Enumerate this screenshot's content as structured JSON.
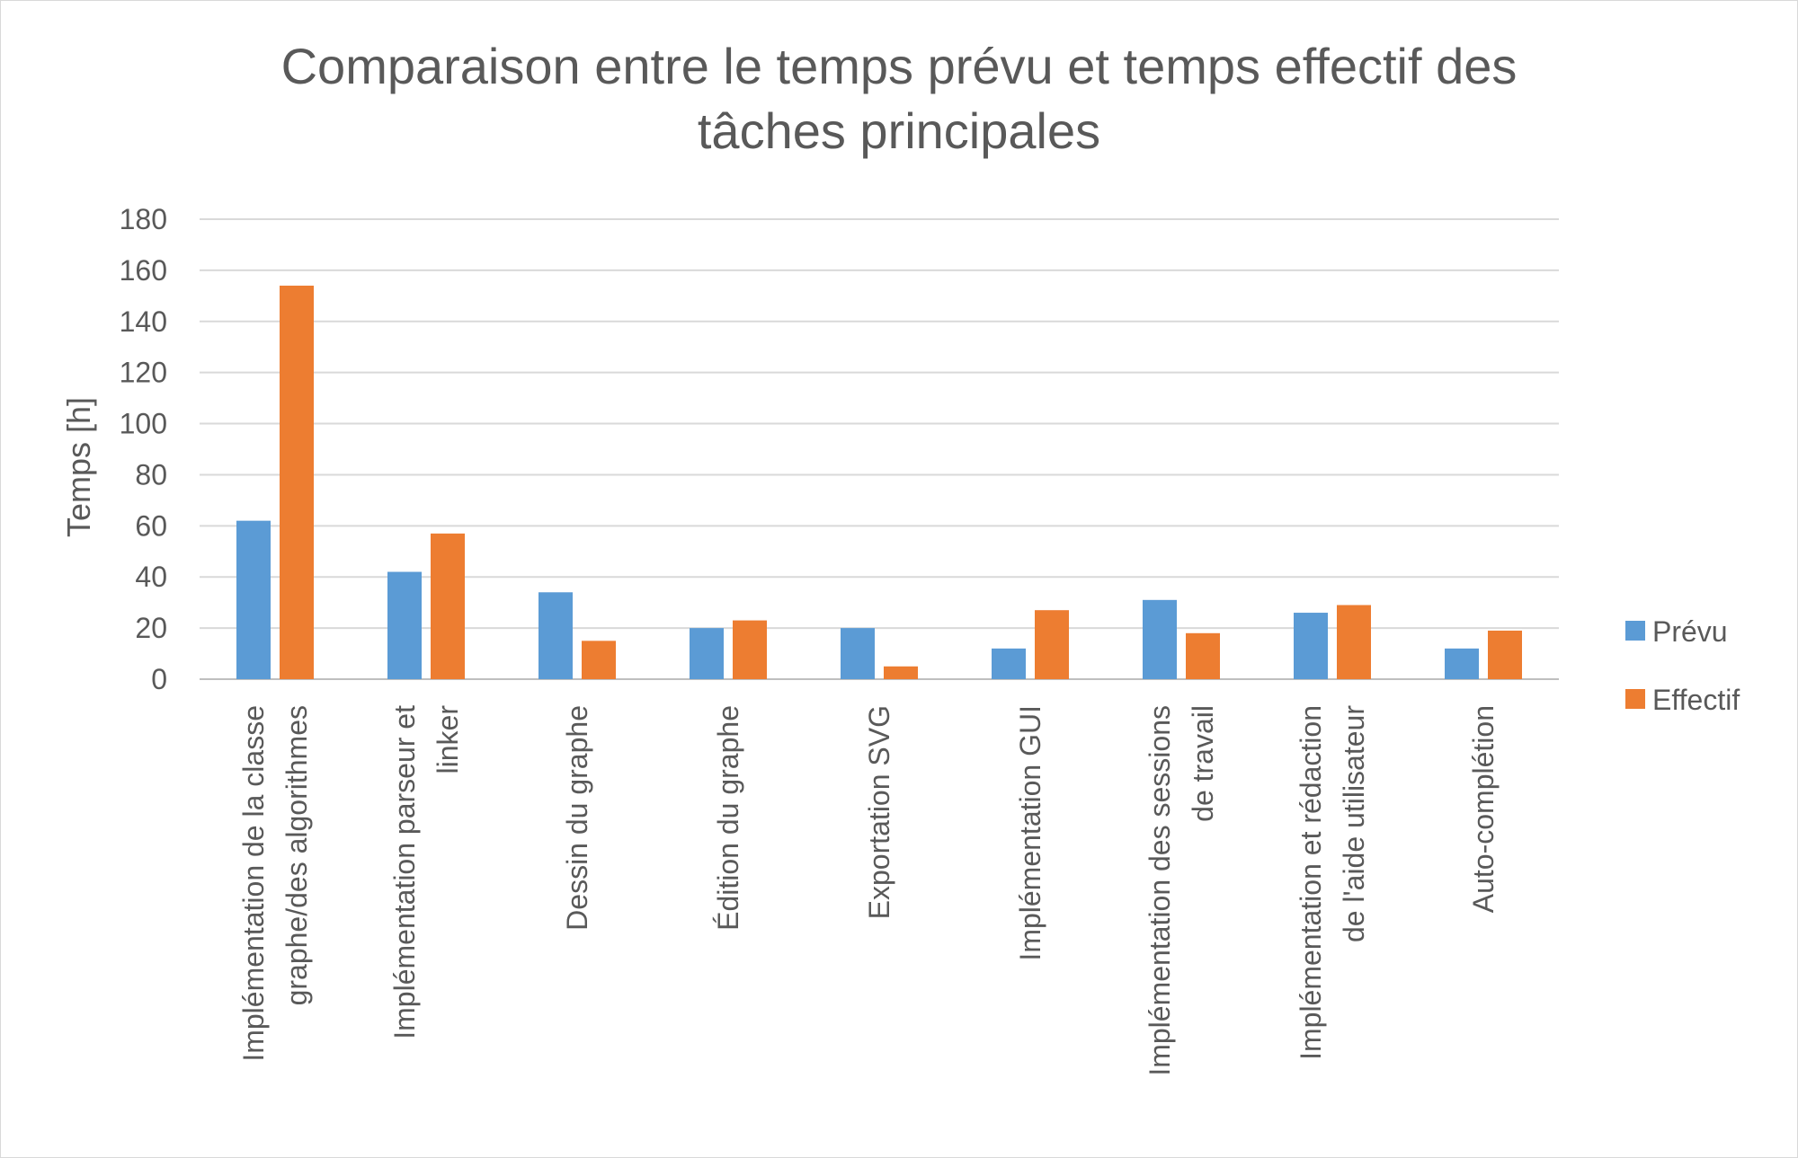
{
  "chart_data": {
    "type": "bar",
    "title_line1": "Comparaison entre le temps prévu et temps effectif des",
    "title_line2": "tâches principales",
    "ylabel": "Temps [h]",
    "xlabel": "",
    "ylim": [
      0,
      180
    ],
    "yticks": [
      0,
      20,
      40,
      60,
      80,
      100,
      120,
      140,
      160,
      180
    ],
    "grid": true,
    "legend_position": "right",
    "categories": [
      [
        "Implémentation de la classe",
        "graphe/des algorithmes"
      ],
      [
        "Implémentation parseur et",
        "linker"
      ],
      [
        "Dessin du graphe"
      ],
      [
        "Édition du graphe"
      ],
      [
        "Exportation SVG"
      ],
      [
        "Implémentation GUI"
      ],
      [
        "Implémentation des sessions",
        "de travail"
      ],
      [
        "Implémentation et rédaction",
        "de l'aide utilisateur"
      ],
      [
        "Auto-complétion"
      ]
    ],
    "series": [
      {
        "name": "Prévu",
        "color": "#5b9bd5",
        "values": [
          62,
          42,
          34,
          20,
          20,
          12,
          31,
          26,
          12
        ]
      },
      {
        "name": "Effectif",
        "color": "#ed7d31",
        "values": [
          154,
          57,
          15,
          23,
          5,
          27,
          18,
          29,
          19
        ]
      }
    ]
  }
}
